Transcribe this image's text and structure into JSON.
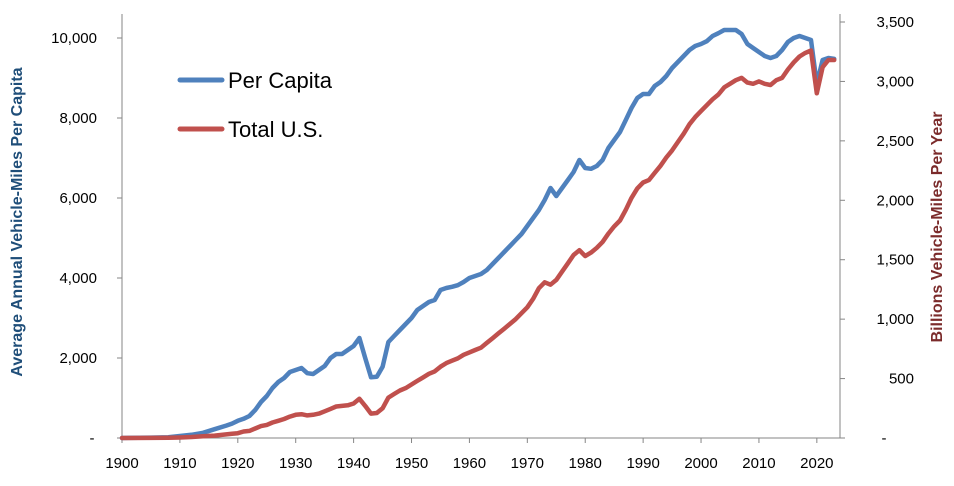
{
  "chart_data": {
    "type": "line",
    "xlabel": "",
    "ylabel_left": "Average Annual Vehicle-Miles Per Capita",
    "ylabel_right": "Billions Vehicle-Miles Per Year",
    "xlim": [
      1900,
      2024
    ],
    "ylim_left": [
      0,
      10400
    ],
    "ylim_right": [
      0,
      3500
    ],
    "xticks": [
      "1900",
      "1910",
      "1920",
      "1930",
      "1940",
      "1950",
      "1960",
      "1970",
      "1980",
      "1990",
      "2000",
      "2010",
      "2020"
    ],
    "yticks_left": [
      "-",
      "2,000",
      "4,000",
      "6,000",
      "8,000",
      "10,000"
    ],
    "yticks_right": [
      "-",
      "500",
      "1,000",
      "1,500",
      "2,000",
      "2,500",
      "3,000",
      "3,500"
    ],
    "grid": false,
    "legend_position": "top-left",
    "colors": {
      "per_capita": "#4F81BD",
      "total": "#C0504D",
      "left_axis_title": "#1F4E79",
      "right_axis_title": "#7B2B2B"
    },
    "series": [
      {
        "name": "Per Capita",
        "axis": "left",
        "x": [
          1900,
          1905,
          1908,
          1910,
          1912,
          1914,
          1916,
          1918,
          1919,
          1920,
          1921,
          1922,
          1923,
          1924,
          1925,
          1926,
          1927,
          1928,
          1929,
          1930,
          1931,
          1932,
          1933,
          1934,
          1935,
          1936,
          1937,
          1938,
          1939,
          1940,
          1941,
          1942,
          1943,
          1944,
          1945,
          1946,
          1947,
          1948,
          1949,
          1950,
          1951,
          1952,
          1953,
          1954,
          1955,
          1956,
          1957,
          1958,
          1959,
          1960,
          1961,
          1962,
          1963,
          1964,
          1965,
          1966,
          1967,
          1968,
          1969,
          1970,
          1971,
          1972,
          1973,
          1974,
          1975,
          1976,
          1977,
          1978,
          1979,
          1980,
          1981,
          1982,
          1983,
          1984,
          1985,
          1986,
          1987,
          1988,
          1989,
          1990,
          1991,
          1992,
          1993,
          1994,
          1995,
          1996,
          1997,
          1998,
          1999,
          2000,
          2001,
          2002,
          2003,
          2004,
          2005,
          2006,
          2007,
          2008,
          2009,
          2010,
          2011,
          2012,
          2013,
          2014,
          2015,
          2016,
          2017,
          2018,
          2019,
          2020,
          2021,
          2022,
          2023
        ],
        "values": [
          0,
          10,
          20,
          50,
          80,
          130,
          220,
          310,
          360,
          430,
          480,
          550,
          700,
          900,
          1050,
          1250,
          1400,
          1500,
          1650,
          1700,
          1750,
          1620,
          1600,
          1700,
          1800,
          2000,
          2100,
          2100,
          2200,
          2300,
          2500,
          2000,
          1520,
          1530,
          1780,
          2400,
          2550,
          2700,
          2850,
          3000,
          3200,
          3300,
          3400,
          3450,
          3700,
          3750,
          3780,
          3820,
          3900,
          4000,
          4050,
          4100,
          4200,
          4350,
          4500,
          4650,
          4800,
          4950,
          5100,
          5300,
          5500,
          5700,
          5950,
          6250,
          6050,
          6250,
          6450,
          6650,
          6950,
          6750,
          6730,
          6800,
          6950,
          7250,
          7450,
          7650,
          7950,
          8250,
          8500,
          8600,
          8600,
          8800,
          8900,
          9050,
          9250,
          9400,
          9550,
          9700,
          9800,
          9850,
          9920,
          10050,
          10120,
          10200,
          10200,
          10200,
          10100,
          9850,
          9750,
          9650,
          9550,
          9500,
          9550,
          9700,
          9900,
          10000,
          10050,
          10000,
          9950,
          8850,
          9450,
          9500,
          9480
        ]
      },
      {
        "name": "Total U.S.",
        "axis": "right",
        "x": [
          1900,
          1905,
          1908,
          1910,
          1912,
          1914,
          1916,
          1918,
          1919,
          1920,
          1921,
          1922,
          1923,
          1924,
          1925,
          1926,
          1927,
          1928,
          1929,
          1930,
          1931,
          1932,
          1933,
          1934,
          1935,
          1936,
          1937,
          1938,
          1939,
          1940,
          1941,
          1942,
          1943,
          1944,
          1945,
          1946,
          1947,
          1948,
          1949,
          1950,
          1951,
          1952,
          1953,
          1954,
          1955,
          1956,
          1957,
          1958,
          1959,
          1960,
          1961,
          1962,
          1963,
          1964,
          1965,
          1966,
          1967,
          1968,
          1969,
          1970,
          1971,
          1972,
          1973,
          1974,
          1975,
          1976,
          1977,
          1978,
          1979,
          1980,
          1981,
          1982,
          1983,
          1984,
          1985,
          1986,
          1987,
          1988,
          1989,
          1990,
          1991,
          1992,
          1993,
          1994,
          1995,
          1996,
          1997,
          1998,
          1999,
          2000,
          2001,
          2002,
          2003,
          2004,
          2005,
          2006,
          2007,
          2008,
          2009,
          2010,
          2011,
          2012,
          2013,
          2014,
          2015,
          2016,
          2017,
          2018,
          2019,
          2020,
          2021,
          2022,
          2023
        ],
        "values": [
          0,
          1,
          2,
          4,
          8,
          15,
          20,
          30,
          35,
          40,
          55,
          60,
          80,
          100,
          110,
          130,
          145,
          160,
          180,
          195,
          200,
          190,
          195,
          205,
          225,
          245,
          265,
          270,
          275,
          290,
          330,
          270,
          205,
          210,
          250,
          340,
          370,
          400,
          420,
          450,
          480,
          510,
          540,
          560,
          600,
          630,
          650,
          670,
          700,
          720,
          740,
          760,
          800,
          840,
          880,
          920,
          960,
          1000,
          1050,
          1100,
          1170,
          1260,
          1310,
          1290,
          1330,
          1400,
          1470,
          1540,
          1580,
          1530,
          1560,
          1600,
          1650,
          1720,
          1780,
          1830,
          1920,
          2020,
          2100,
          2150,
          2170,
          2230,
          2290,
          2360,
          2420,
          2490,
          2560,
          2640,
          2700,
          2750,
          2800,
          2850,
          2890,
          2950,
          2980,
          3010,
          3030,
          2990,
          2980,
          3000,
          2980,
          2970,
          3010,
          3030,
          3100,
          3160,
          3210,
          3240,
          3260,
          2900,
          3120,
          3180,
          3180
        ]
      }
    ]
  }
}
